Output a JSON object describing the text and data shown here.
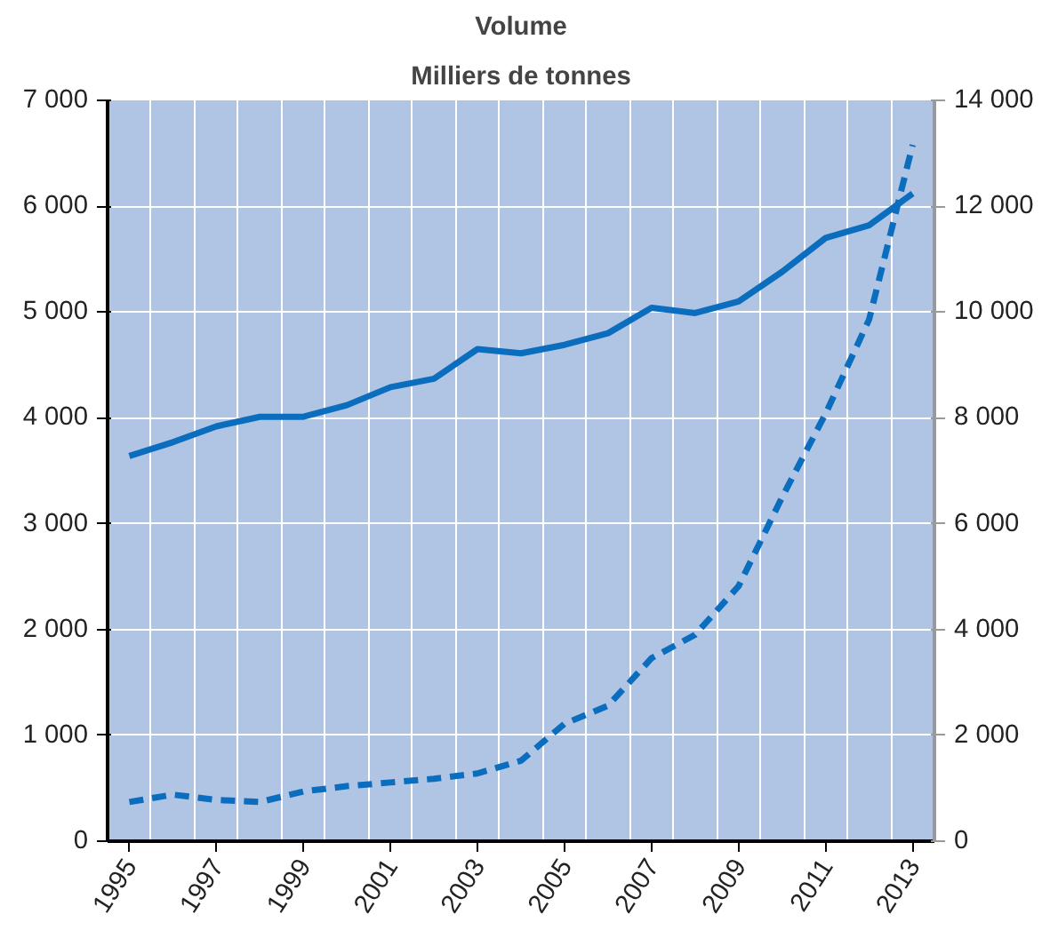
{
  "chart_data": {
    "type": "line",
    "title": "Volume",
    "subtitle": "Milliers de tonnes",
    "categories": [
      "1995",
      null,
      "1997",
      null,
      "1999",
      null,
      "2001",
      null,
      "2003",
      null,
      "2005",
      null,
      "2007",
      null,
      "2009",
      null,
      "2011",
      null,
      "2013"
    ],
    "series": [
      {
        "color": "#0b6dbd",
        "line_style": "solid",
        "values": [
          3640,
          3770,
          3920,
          4010,
          4010,
          4120,
          4290,
          4370,
          4650,
          4610,
          4690,
          4800,
          5040,
          4990,
          5100,
          5380,
          5700,
          5820,
          6120
        ]
      },
      {
        "color": "#0b6dbd",
        "line_style": "dashed",
        "axis": "y2",
        "values": [
          740,
          880,
          780,
          740,
          940,
          1040,
          1110,
          1180,
          1280,
          1520,
          2220,
          2560,
          3460,
          3900,
          4820,
          6500,
          8080,
          9860,
          13160
        ]
      }
    ],
    "ylim": [
      0,
      7000
    ],
    "yticks": [
      {
        "value": 0,
        "label": "0"
      },
      {
        "value": 1000,
        "label": "1 000"
      },
      {
        "value": 2000,
        "label": "2 000"
      },
      {
        "value": 3000,
        "label": "3 000"
      },
      {
        "value": 4000,
        "label": "4 000"
      },
      {
        "value": 5000,
        "label": "5 000"
      },
      {
        "value": 6000,
        "label": "6 000"
      },
      {
        "value": 7000,
        "label": "7 000"
      }
    ],
    "y2lim": [
      0,
      14000
    ],
    "y2ticks": [
      {
        "value": 0,
        "label": "0"
      },
      {
        "value": 2000,
        "label": "2 000"
      },
      {
        "value": 4000,
        "label": "4 000"
      },
      {
        "value": 6000,
        "label": "6 000"
      },
      {
        "value": 8000,
        "label": "8 000"
      },
      {
        "value": 10000,
        "label": "10 000"
      },
      {
        "value": 12000,
        "label": "12 000"
      },
      {
        "value": 14000,
        "label": "14 000"
      }
    ],
    "grid": true,
    "marker": "none"
  }
}
